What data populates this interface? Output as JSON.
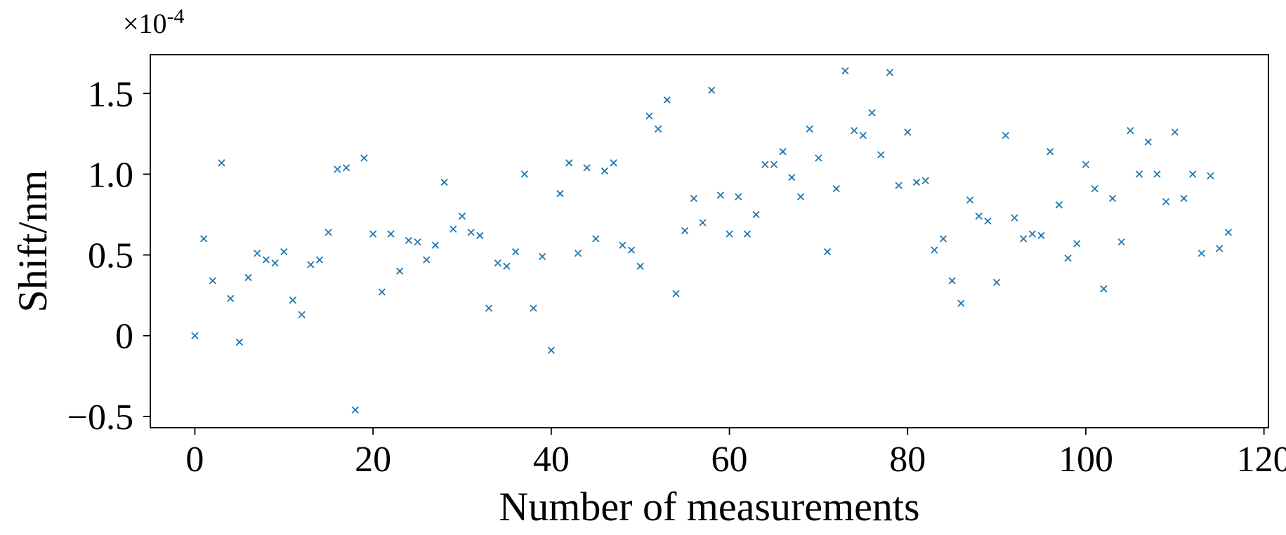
{
  "chart_data": {
    "type": "scatter",
    "title": "",
    "xlabel": "Number of measurements",
    "ylabel": "Shift/nm",
    "y_multiplier_label": "×10-4",
    "y_multiplier_base": "×10",
    "y_multiplier_exponent": "-4",
    "xlim": [
      -5,
      120.5
    ],
    "ylim": [
      -0.57,
      1.74
    ],
    "x_ticks": [
      0,
      20,
      40,
      60,
      80,
      100,
      120
    ],
    "x_tick_labels": [
      "0",
      "20",
      "40",
      "60",
      "80",
      "100",
      "120"
    ],
    "y_ticks": [
      -0.5,
      0,
      0.5,
      1.0,
      1.5
    ],
    "y_tick_labels": [
      "−0.5",
      "0",
      "0.5",
      "1.0",
      "1.5"
    ],
    "grid": false,
    "legend": "none",
    "marker": "x",
    "color": "#1f77b4",
    "series": [
      {
        "x": [
          0,
          1,
          2,
          3,
          4,
          5,
          6,
          7,
          8,
          9,
          10,
          11,
          12,
          13,
          14,
          15,
          16,
          17,
          18,
          19,
          20,
          21,
          22,
          23,
          24,
          25,
          26,
          27,
          28,
          29,
          30,
          31,
          32,
          33,
          34,
          35,
          36,
          37,
          38,
          39,
          40,
          41,
          42,
          43,
          44,
          45,
          46,
          47,
          48,
          49,
          50,
          51,
          52,
          53,
          54,
          55,
          56,
          57,
          58,
          59,
          60,
          61,
          62,
          63,
          64,
          65,
          66,
          67,
          68,
          69,
          70,
          71,
          72,
          73,
          74,
          75,
          76,
          77,
          78,
          79,
          80,
          81,
          82,
          83,
          84,
          85,
          86,
          87,
          88,
          89,
          90,
          91,
          92,
          93,
          94,
          95,
          96,
          97,
          98,
          99,
          100,
          101,
          102,
          103,
          104,
          105,
          106,
          107,
          108,
          109,
          110,
          111,
          112,
          113,
          114,
          115,
          116
        ],
        "values": [
          0.0,
          0.6,
          0.34,
          1.07,
          0.23,
          -0.04,
          0.36,
          0.51,
          0.47,
          0.45,
          0.52,
          0.22,
          0.13,
          0.44,
          0.47,
          0.64,
          1.03,
          1.04,
          -0.46,
          1.1,
          0.63,
          0.27,
          0.63,
          0.4,
          0.59,
          0.58,
          0.47,
          0.56,
          0.95,
          0.66,
          0.74,
          0.64,
          0.62,
          0.17,
          0.45,
          0.43,
          0.52,
          1.0,
          0.17,
          0.49,
          -0.09,
          0.88,
          1.07,
          0.51,
          1.04,
          0.6,
          1.02,
          1.07,
          0.56,
          0.53,
          0.43,
          1.36,
          1.28,
          1.46,
          0.26,
          0.65,
          0.85,
          0.7,
          1.52,
          0.87,
          0.63,
          0.86,
          0.63,
          0.75,
          1.06,
          1.06,
          1.14,
          0.98,
          0.86,
          1.28,
          1.1,
          0.52,
          0.91,
          1.64,
          1.27,
          1.24,
          1.38,
          1.12,
          1.63,
          0.93,
          1.26,
          0.95,
          0.96,
          0.53,
          0.6,
          0.34,
          0.2,
          0.84,
          0.74,
          0.71,
          0.33,
          1.24,
          0.73,
          0.6,
          0.63,
          0.62,
          1.14,
          0.81,
          0.48,
          0.57,
          1.06,
          0.91,
          0.29,
          0.85,
          0.58,
          1.27,
          1.0,
          1.2,
          1.0,
          0.83,
          1.26,
          0.85,
          1.0,
          0.51,
          0.99,
          0.54,
          0.64
        ]
      }
    ]
  }
}
